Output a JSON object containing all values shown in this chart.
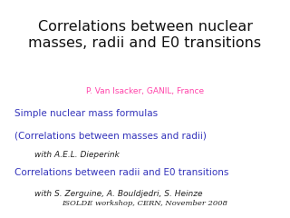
{
  "title_line1": "Correlations between nuclear",
  "title_line2": "masses, radii and E0 transitions",
  "subtitle": "P. Van Isacker, GANIL, France",
  "subtitle_color": "#ff44aa",
  "title_color": "#111111",
  "title_fontsize": 11.5,
  "subtitle_fontsize": 6.5,
  "line1_text": "Simple nuclear mass formulas",
  "line1_color": "#3333bb",
  "line1_fontsize": 7.5,
  "line2_text": "(Correlations between masses and radii)",
  "line2_color": "#3333bb",
  "line2_fontsize": 7.5,
  "line3_text": "with A.E.L. Dieperink",
  "line3_color": "#222222",
  "line3_fontsize": 6.5,
  "line4_text": "Correlations between radii and E0 transitions",
  "line4_color": "#3333bb",
  "line4_fontsize": 7.5,
  "line5_text": "with S. Zerguine, A. Bouldjedri, S. Heinze",
  "line5_color": "#222222",
  "line5_fontsize": 6.5,
  "footer_text": "ISOLDE workshop, CERN, November 2008",
  "footer_color": "#222222",
  "footer_fontsize": 6.0,
  "background_color": "#ffffff"
}
